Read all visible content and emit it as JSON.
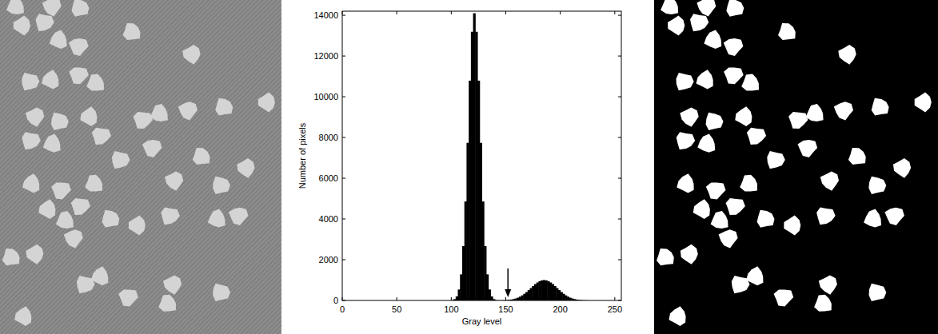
{
  "chart_data": {
    "type": "histogram",
    "x_label": "Gray level",
    "y_label": "Number of pixels",
    "bins": [
      98,
      100,
      102,
      104,
      106,
      108,
      110,
      112,
      114,
      116,
      118,
      120,
      122,
      124,
      126,
      128,
      130,
      132,
      134,
      136,
      138,
      140,
      142,
      144,
      146,
      148,
      150,
      152,
      154,
      156,
      158,
      160,
      162,
      164,
      166,
      168,
      170,
      172,
      174,
      176,
      178,
      180,
      182,
      184,
      186,
      188,
      190,
      192,
      194,
      196,
      198,
      200,
      202,
      204,
      206,
      208,
      210,
      212,
      214,
      216,
      218,
      220,
      222,
      224,
      226,
      228
    ],
    "values": [
      0,
      18,
      64,
      197,
      537,
      1279,
      2666,
      4858,
      7738,
      10790,
      13190,
      14100,
      13190,
      10790,
      7738,
      4858,
      2666,
      1279,
      537,
      197,
      64,
      18,
      5,
      5,
      10,
      15,
      20,
      28,
      44,
      66,
      95,
      135,
      186,
      249,
      325,
      411,
      506,
      607,
      707,
      801,
      882,
      946,
      986,
      1000,
      986,
      946,
      882,
      801,
      707,
      607,
      506,
      411,
      325,
      249,
      186,
      135,
      95,
      66,
      44,
      28,
      18,
      11,
      6,
      3,
      0
    ],
    "color": "#000000",
    "xlim": [
      0,
      256
    ],
    "ylim": [
      0,
      14200
    ],
    "xticks": [
      0,
      50,
      100,
      150,
      200,
      250
    ],
    "yticks": [
      0,
      2000,
      4000,
      6000,
      8000,
      10000,
      12000,
      14000
    ],
    "grid": false,
    "threshold": 152
  }
}
